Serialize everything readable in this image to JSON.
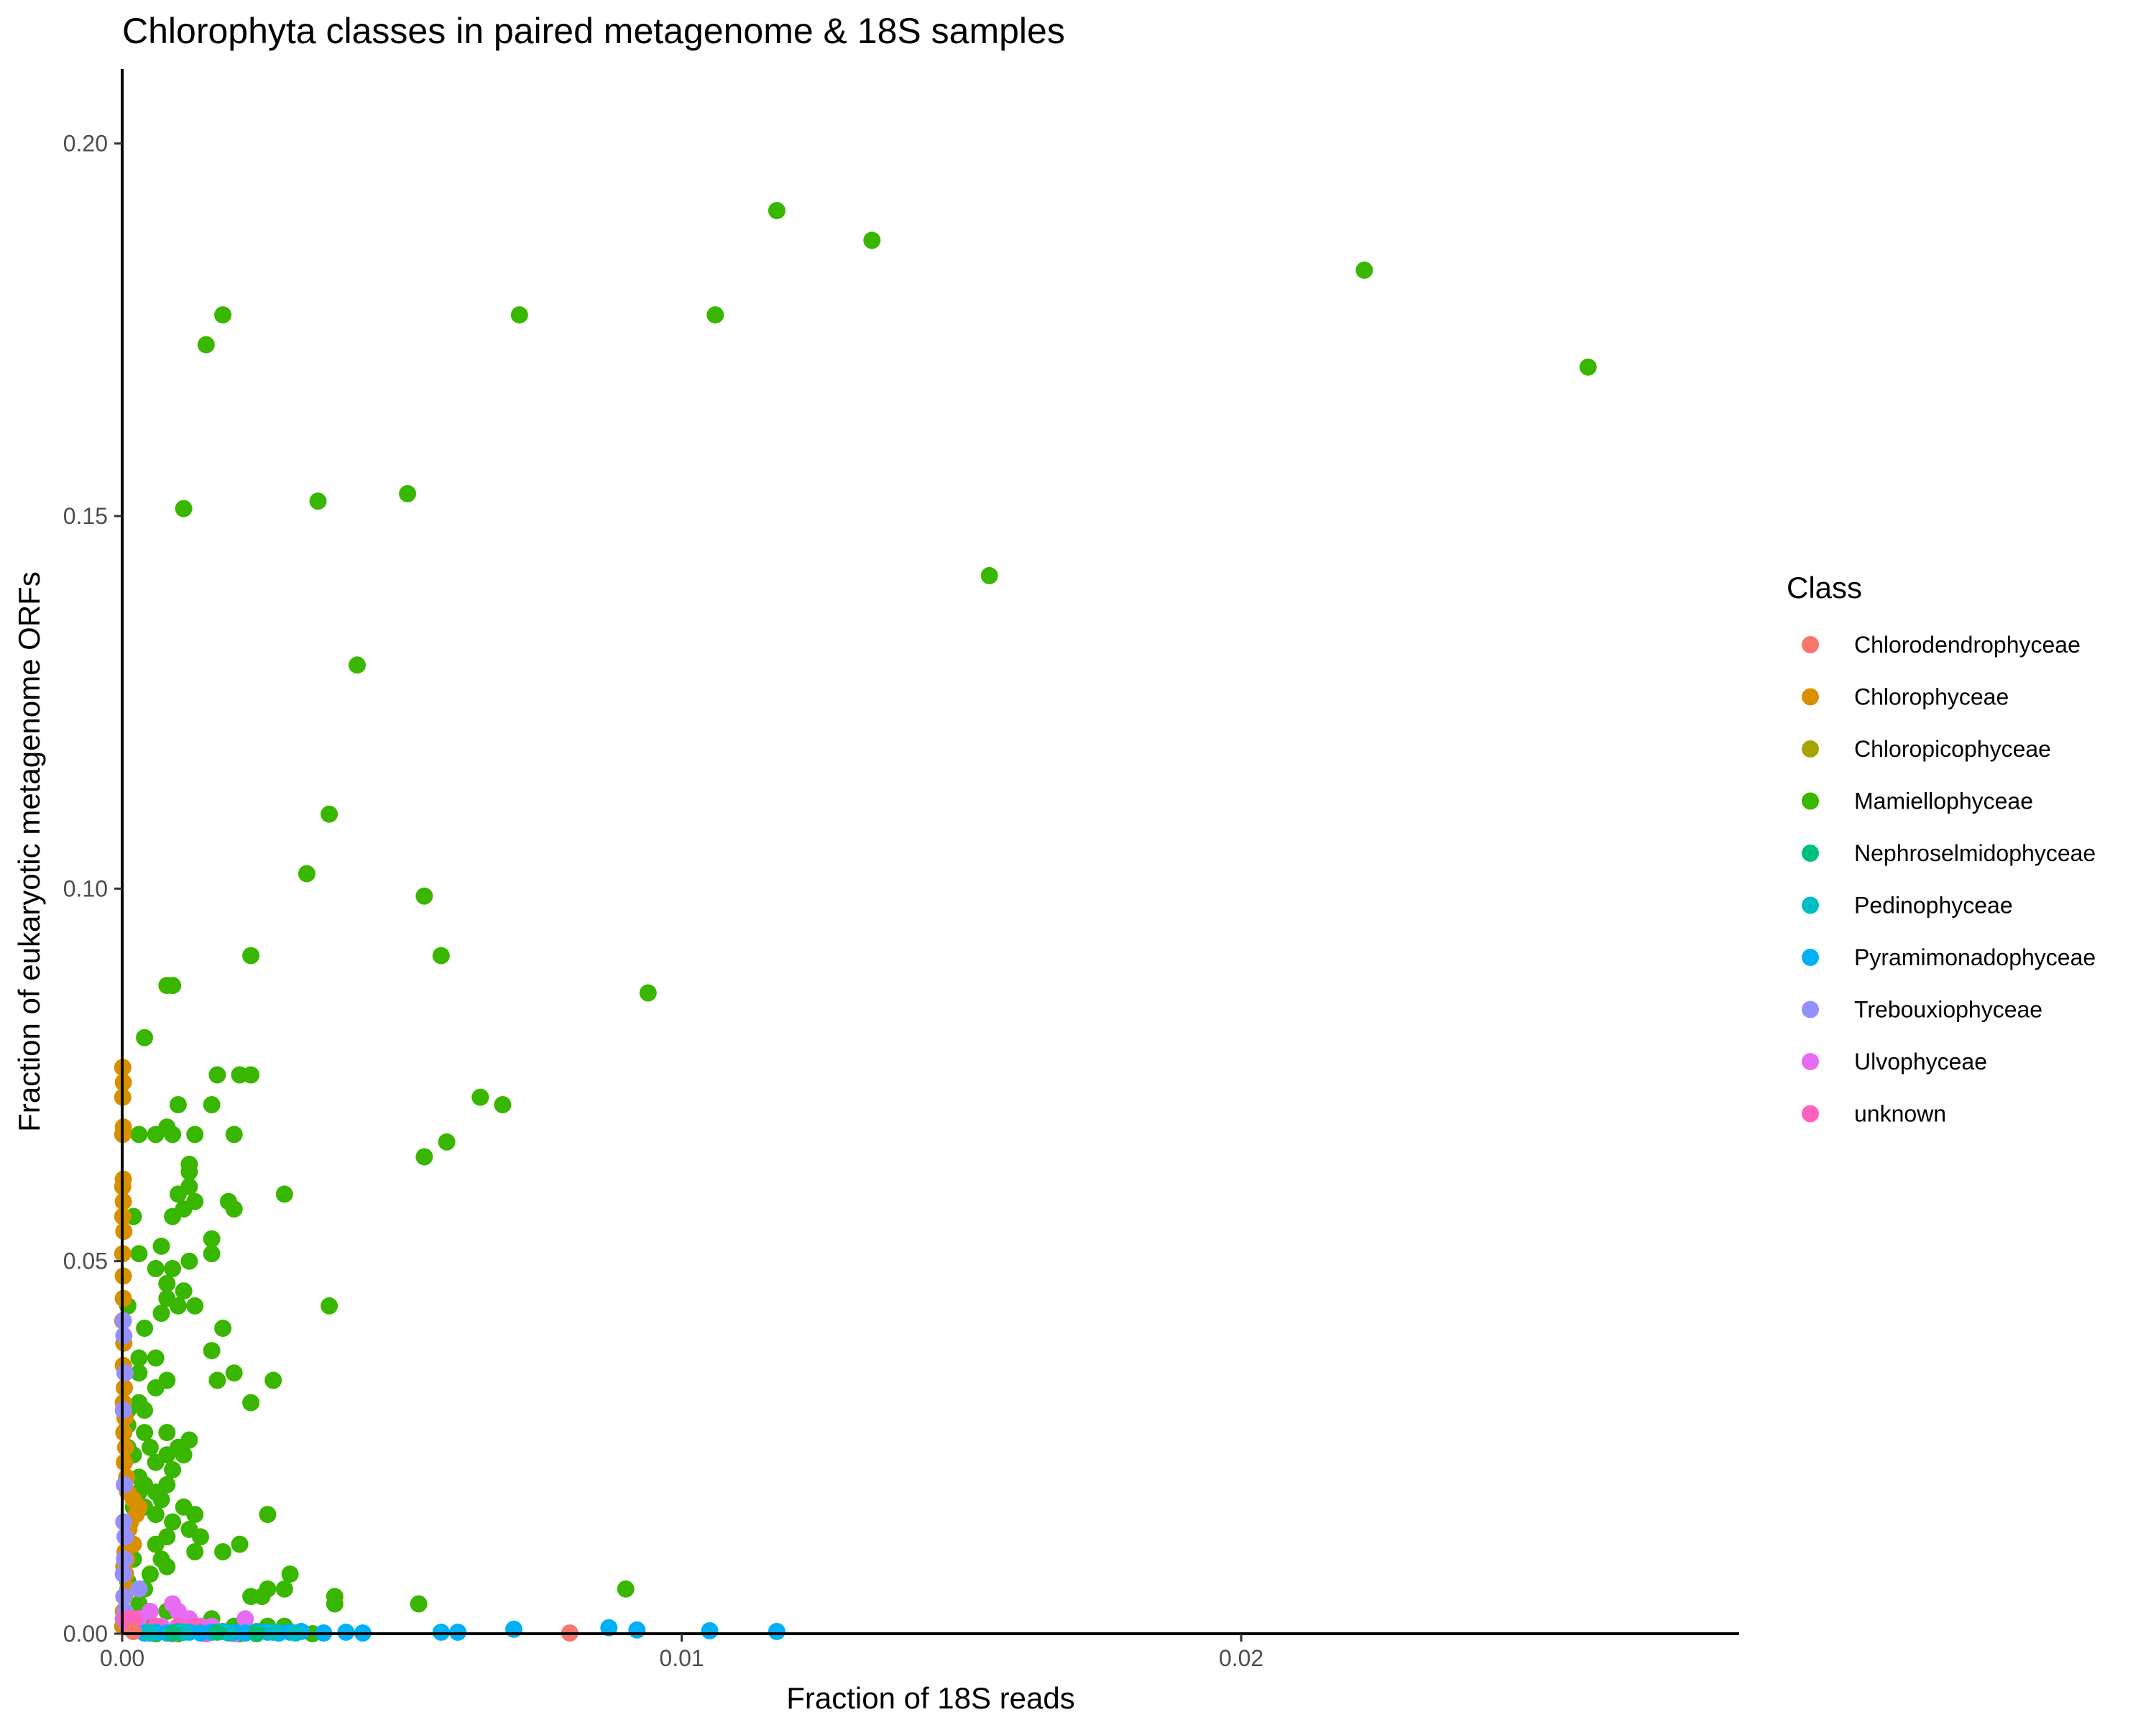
{
  "chart_data": {
    "type": "scatter",
    "title": "Chlorophyta classes in paired metagenome & 18S samples",
    "xlabel": "Fraction of 18S reads",
    "ylabel": "Fraction of eukaryotic metagenome ORFs",
    "xlim": [
      0,
      0.0289
    ],
    "ylim": [
      0,
      0.21
    ],
    "x_ticks": [
      0.0,
      0.01,
      0.02
    ],
    "x_tick_labels": [
      "0.00",
      "0.01",
      "0.02"
    ],
    "y_ticks": [
      0.0,
      0.05,
      0.1,
      0.15,
      0.2
    ],
    "y_tick_labels": [
      "0.00",
      "0.05",
      "0.10",
      "0.15",
      "0.20"
    ],
    "grid": false,
    "legend": {
      "title": "Class",
      "position": "right",
      "entries": [
        {
          "label": "Chlorodendrophyceae",
          "color": "#F8766D"
        },
        {
          "label": "Chlorophyceae",
          "color": "#D89000"
        },
        {
          "label": "Chloropicophyceae",
          "color": "#A3A500"
        },
        {
          "label": "Mamiellophyceae",
          "color": "#39B600"
        },
        {
          "label": "Nephroselmidophyceae",
          "color": "#00BF7D"
        },
        {
          "label": "Pedinophyceae",
          "color": "#00BFC4"
        },
        {
          "label": "Pyramimonadophyceae",
          "color": "#00B0F6"
        },
        {
          "label": "Trebouxiophyceae",
          "color": "#9590FF"
        },
        {
          "label": "Ulvophyceae",
          "color": "#E76BF3"
        },
        {
          "label": "unknown",
          "color": "#FF62BC"
        }
      ]
    },
    "series": [
      {
        "name": "Mamiellophyceae",
        "color": "#39B600",
        "points": [
          [
            0.0117,
            0.191
          ],
          [
            0.0134,
            0.187
          ],
          [
            0.0222,
            0.183
          ],
          [
            0.0262,
            0.17
          ],
          [
            0.0106,
            0.177
          ],
          [
            0.0071,
            0.177
          ],
          [
            0.0018,
            0.177
          ],
          [
            0.0015,
            0.173
          ],
          [
            0.0155,
            0.142
          ],
          [
            0.0051,
            0.153
          ],
          [
            0.0035,
            0.152
          ],
          [
            0.0011,
            0.151
          ],
          [
            0.0042,
            0.13
          ],
          [
            0.0037,
            0.11
          ],
          [
            0.0033,
            0.102
          ],
          [
            0.0054,
            0.099
          ],
          [
            0.0057,
            0.091
          ],
          [
            0.0023,
            0.091
          ],
          [
            0.0094,
            0.086
          ],
          [
            0.0008,
            0.087
          ],
          [
            0.0009,
            0.087
          ],
          [
            0.0004,
            0.08
          ],
          [
            0.0017,
            0.075
          ],
          [
            0.0021,
            0.075
          ],
          [
            0.0023,
            0.075
          ],
          [
            0.0064,
            0.072
          ],
          [
            0.0068,
            0.071
          ],
          [
            0.0016,
            0.071
          ],
          [
            0.001,
            0.071
          ],
          [
            0.0008,
            0.068
          ],
          [
            0.0009,
            0.067
          ],
          [
            0.0013,
            0.067
          ],
          [
            0.0006,
            0.067
          ],
          [
            0.0003,
            0.067
          ],
          [
            0.002,
            0.067
          ],
          [
            0.0058,
            0.066
          ],
          [
            0.0054,
            0.064
          ],
          [
            0.0012,
            0.063
          ],
          [
            0.0012,
            0.062
          ],
          [
            0.0029,
            0.059
          ],
          [
            0.0012,
            0.06
          ],
          [
            0.001,
            0.059
          ],
          [
            0.0013,
            0.058
          ],
          [
            0.0019,
            0.058
          ],
          [
            0.0011,
            0.057
          ],
          [
            0.002,
            0.057
          ],
          [
            0.0009,
            0.056
          ],
          [
            0.0002,
            0.056
          ],
          [
            0.0016,
            0.053
          ],
          [
            0.0007,
            0.052
          ],
          [
            0.0003,
            0.051
          ],
          [
            0.0016,
            0.051
          ],
          [
            0.0012,
            0.05
          ],
          [
            0.0009,
            0.049
          ],
          [
            0.0006,
            0.049
          ],
          [
            0.0008,
            0.047
          ],
          [
            0.0011,
            0.046
          ],
          [
            0.0008,
            0.045
          ],
          [
            0.0037,
            0.044
          ],
          [
            0.0013,
            0.044
          ],
          [
            0.001,
            0.044
          ],
          [
            0.0001,
            0.044
          ],
          [
            0.0007,
            0.043
          ],
          [
            0.0004,
            0.041
          ],
          [
            0.0018,
            0.041
          ],
          [
            0.0016,
            0.038
          ],
          [
            0.0003,
            0.037
          ],
          [
            0.0006,
            0.037
          ],
          [
            0.0003,
            0.035
          ],
          [
            0.002,
            0.035
          ],
          [
            0.0008,
            0.034
          ],
          [
            0.0006,
            0.033
          ],
          [
            0.0027,
            0.034
          ],
          [
            0.0017,
            0.034
          ],
          [
            0.0003,
            0.031
          ],
          [
            0.0001,
            0.03
          ],
          [
            0.0023,
            0.031
          ],
          [
            0.0004,
            0.03
          ],
          [
            0.0001,
            0.028
          ],
          [
            0.0008,
            0.027
          ],
          [
            0.0004,
            0.027
          ],
          [
            0.0012,
            0.026
          ],
          [
            0.0001,
            0.025
          ],
          [
            0.0005,
            0.025
          ],
          [
            0.001,
            0.025
          ],
          [
            0.0002,
            0.024
          ],
          [
            0.0008,
            0.024
          ],
          [
            0.0011,
            0.024
          ],
          [
            0.0006,
            0.023
          ],
          [
            0.0009,
            0.022
          ],
          [
            0.0003,
            0.021
          ],
          [
            0.0004,
            0.02
          ],
          [
            0.0008,
            0.02
          ],
          [
            0.0003,
            0.019
          ],
          [
            0.0006,
            0.019
          ],
          [
            0.0007,
            0.018
          ],
          [
            0.0004,
            0.017
          ],
          [
            0.0011,
            0.017
          ],
          [
            0.0002,
            0.017
          ],
          [
            0.0006,
            0.016
          ],
          [
            0.0013,
            0.016
          ],
          [
            0.0026,
            0.016
          ],
          [
            0.0009,
            0.015
          ],
          [
            0.0012,
            0.014
          ],
          [
            0.0008,
            0.013
          ],
          [
            0.0014,
            0.013
          ],
          [
            0.0006,
            0.012
          ],
          [
            0.0021,
            0.012
          ],
          [
            0.0018,
            0.011
          ],
          [
            0.0013,
            0.011
          ],
          [
            0.0002,
            0.01
          ],
          [
            0.0007,
            0.01
          ],
          [
            0.0008,
            0.009
          ],
          [
            0.0005,
            0.008
          ],
          [
            0.003,
            0.008
          ],
          [
            0.0001,
            0.007
          ],
          [
            0.0004,
            0.006
          ],
          [
            0.0026,
            0.006
          ],
          [
            0.0029,
            0.006
          ],
          [
            0.009,
            0.006
          ],
          [
            0.0023,
            0.005
          ],
          [
            0.0038,
            0.005
          ],
          [
            0.0003,
            0.004
          ],
          [
            0.0053,
            0.004
          ],
          [
            0.0038,
            0.004
          ],
          [
            0.0025,
            0.005
          ],
          [
            0.0008,
            0.003
          ],
          [
            0.0016,
            0.002
          ],
          [
            0.0004,
            0.002
          ],
          [
            0.002,
            0.001
          ],
          [
            0.0026,
            0.001
          ],
          [
            0.0029,
            0.001
          ],
          [
            0.0034,
            0.0
          ],
          [
            0.0021,
            0.0
          ],
          [
            0.0024,
            0.0
          ],
          [
            0.001,
            0.0
          ],
          [
            0.0006,
            0.0
          ]
        ]
      },
      {
        "name": "Chlorophyceae",
        "color": "#D89000",
        "points": [
          [
            1e-05,
            0.076
          ],
          [
            2e-05,
            0.074
          ],
          [
            1e-05,
            0.072
          ],
          [
            2e-05,
            0.068
          ],
          [
            1e-05,
            0.067
          ],
          [
            2e-05,
            0.061
          ],
          [
            1e-05,
            0.06
          ],
          [
            2e-05,
            0.058
          ],
          [
            1e-05,
            0.056
          ],
          [
            3e-05,
            0.054
          ],
          [
            1e-05,
            0.051
          ],
          [
            2e-05,
            0.048
          ],
          [
            2e-05,
            0.045
          ],
          [
            1e-05,
            0.042
          ],
          [
            3e-05,
            0.039
          ],
          [
            2e-05,
            0.036
          ],
          [
            4e-05,
            0.033
          ],
          [
            2e-05,
            0.031
          ],
          [
            5e-05,
            0.029
          ],
          [
            3e-05,
            0.027
          ],
          [
            6e-05,
            0.025
          ],
          [
            4e-05,
            0.023
          ],
          [
            8e-05,
            0.021
          ],
          [
            0.0001,
            0.019
          ],
          [
            0.0002,
            0.018
          ],
          [
            0.0003,
            0.017
          ],
          [
            0.00025,
            0.016
          ],
          [
            0.00015,
            0.015
          ],
          [
            0.00012,
            0.014
          ],
          [
            0.0002,
            0.012
          ],
          [
            5e-05,
            0.011
          ],
          [
            8e-05,
            0.01
          ],
          [
            3e-05,
            0.009
          ],
          [
            6e-05,
            0.008
          ],
          [
            0.0001,
            0.006
          ],
          [
            4e-05,
            0.005
          ],
          [
            2e-05,
            0.003
          ],
          [
            7e-05,
            0.002
          ],
          [
            1e-05,
            0.001
          ]
        ]
      },
      {
        "name": "Trebouxiophyceae",
        "color": "#9590FF",
        "points": [
          [
            2e-05,
            0.042
          ],
          [
            3e-05,
            0.04
          ],
          [
            5e-05,
            0.035
          ],
          [
            2e-05,
            0.03
          ],
          [
            4e-05,
            0.02
          ],
          [
            3e-05,
            0.015
          ],
          [
            5e-05,
            0.013
          ],
          [
            4e-05,
            0.01
          ],
          [
            2e-05,
            0.008
          ],
          [
            0.0003,
            0.006
          ],
          [
            3e-05,
            0.005
          ],
          [
            5e-05,
            0.003
          ],
          [
            2e-05,
            0.002
          ]
        ]
      },
      {
        "name": "Ulvophyceae",
        "color": "#E76BF3",
        "points": [
          [
            0.0005,
            0.003
          ],
          [
            0.0009,
            0.004
          ],
          [
            0.001,
            0.003
          ],
          [
            0.0012,
            0.002
          ],
          [
            0.0014,
            0.001
          ],
          [
            0.0022,
            0.002
          ],
          [
            0.0007,
            0.001
          ],
          [
            0.0003,
            0.002
          ],
          [
            0.0016,
            0.001
          ],
          [
            0.002,
            0.0
          ],
          [
            0.0001,
            0.001
          ]
        ]
      },
      {
        "name": "unknown",
        "color": "#FF62BC",
        "points": [
          [
            5e-05,
            0.002
          ],
          [
            0.0002,
            0.002
          ],
          [
            0.0006,
            0.001
          ],
          [
            0.001,
            0.001
          ],
          [
            0.0013,
            0.001
          ],
          [
            0.0009,
            0.0
          ],
          [
            0.0015,
            0.0
          ]
        ]
      },
      {
        "name": "Pyramimonadophyceae",
        "color": "#00B0F6",
        "points": [
          [
            0.0117,
            0.0003
          ],
          [
            0.0105,
            0.0004
          ],
          [
            0.0092,
            0.0005
          ],
          [
            0.0087,
            0.0008
          ],
          [
            0.007,
            0.0006
          ],
          [
            0.006,
            0.0002
          ],
          [
            0.0057,
            0.0002
          ],
          [
            0.0043,
            0.0001
          ],
          [
            0.004,
            0.0002
          ],
          [
            0.0036,
            0.0001
          ],
          [
            0.0032,
            0.0003
          ],
          [
            0.003,
            0.0002
          ],
          [
            0.0028,
            0.0001
          ],
          [
            0.0026,
            0.0002
          ],
          [
            0.0024,
            0.0003
          ],
          [
            0.0022,
            0.0001
          ],
          [
            0.002,
            0.0002
          ],
          [
            0.0018,
            0.0003
          ],
          [
            0.0016,
            0.0002
          ],
          [
            0.0014,
            0.0001
          ],
          [
            0.0012,
            0.0002
          ],
          [
            0.001,
            0.0003
          ],
          [
            0.0008,
            0.0001
          ],
          [
            0.0006,
            0.0002
          ],
          [
            0.0004,
            0.0001
          ],
          [
            0.0002,
            0.0003
          ]
        ]
      },
      {
        "name": "Pedinophyceae",
        "color": "#00BFC4",
        "points": [
          [
            0.0031,
            0.0001
          ],
          [
            0.0027,
            0.0002
          ],
          [
            0.0019,
            0.0001
          ],
          [
            0.0011,
            0.0002
          ],
          [
            0.0005,
            0.0001
          ]
        ]
      },
      {
        "name": "Nephroselmidophyceae",
        "color": "#00BF7D",
        "points": [
          [
            0.0024,
            0.0001
          ],
          [
            0.0017,
            0.0002
          ],
          [
            0.0009,
            0.0001
          ]
        ]
      },
      {
        "name": "Chlorodendrophyceae",
        "color": "#F8766D",
        "points": [
          [
            0.008,
            0.0001
          ],
          [
            0.0002,
            0.0003
          ]
        ]
      }
    ]
  }
}
